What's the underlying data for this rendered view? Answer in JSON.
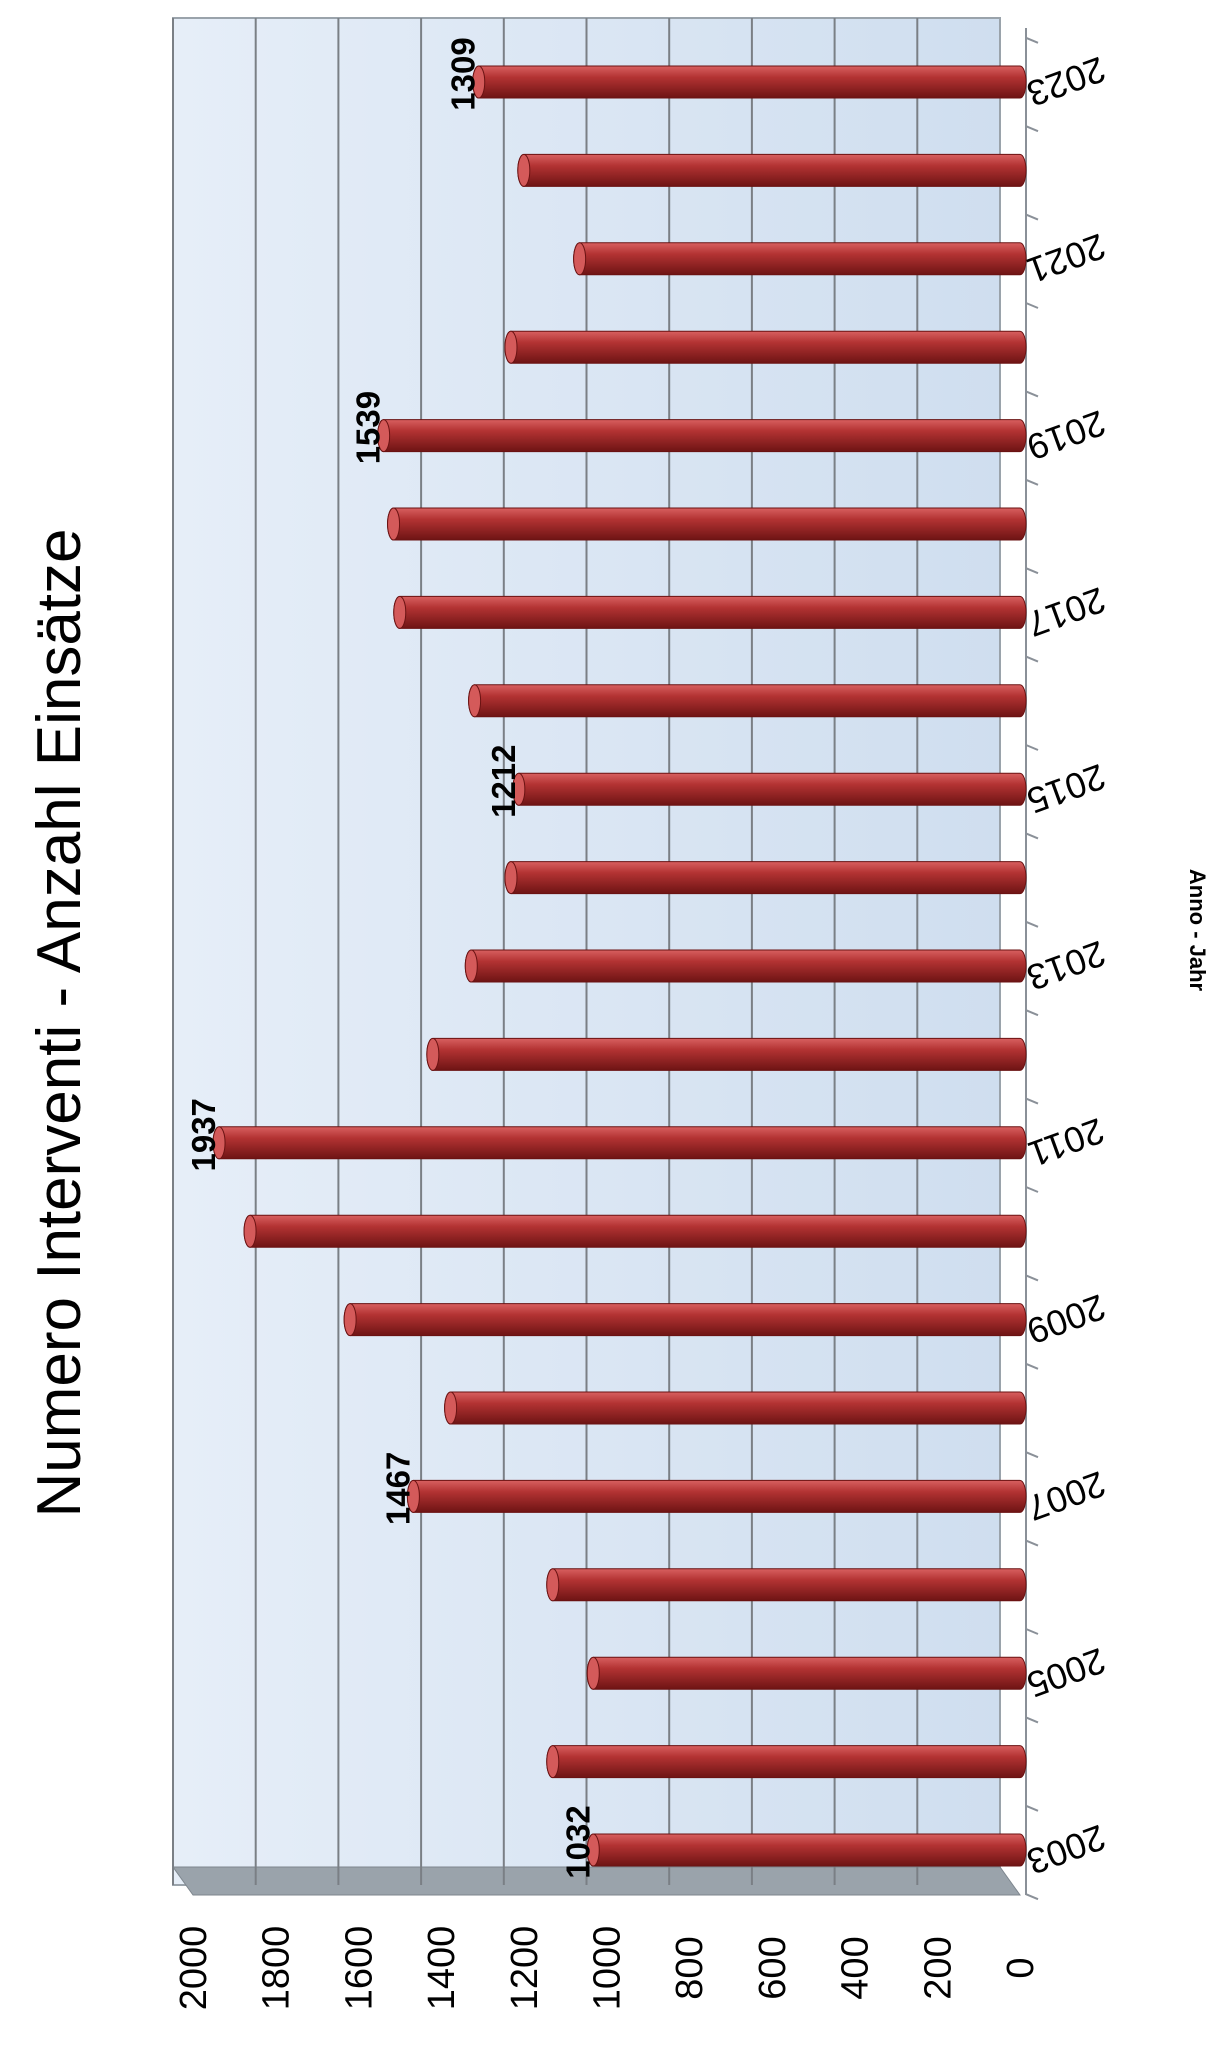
{
  "chart_data": {
    "type": "bar",
    "title": "Numero Interventi - Anzahl Einsätze",
    "xlabel": "Anno - Jahr",
    "ylabel": "",
    "ylim": [
      0,
      2000
    ],
    "yticks": [
      "0",
      "200",
      "400",
      "600",
      "800",
      "1000",
      "1200",
      "1400",
      "1600",
      "1800",
      "2000"
    ],
    "categories": [
      "2003",
      "2004",
      "2005",
      "2006",
      "2007",
      "2008",
      "2009",
      "2010",
      "2011",
      "2012",
      "2013",
      "2014",
      "2015",
      "2016",
      "2017",
      "2018",
      "2019",
      "2020",
      "2021",
      "2022",
      "2023"
    ],
    "xtick_labels": [
      "2003",
      "",
      "2005",
      "",
      "2007",
      "",
      "2009",
      "",
      "2011",
      "",
      "2013",
      "",
      "2015",
      "",
      "2017",
      "",
      "2019",
      "",
      "2021",
      "",
      "2023"
    ],
    "values": [
      1032,
      1130,
      1032,
      1130,
      1467,
      1377,
      1620,
      1862,
      1937,
      1420,
      1327,
      1231,
      1212,
      1319,
      1500,
      1515,
      1539,
      1231,
      1065,
      1200,
      1309
    ],
    "data_labels": [
      {
        "index": 0,
        "text": "1032"
      },
      {
        "index": 4,
        "text": "1467"
      },
      {
        "index": 8,
        "text": "1937"
      },
      {
        "index": 12,
        "text": "1212"
      },
      {
        "index": 16,
        "text": "1539"
      },
      {
        "index": 20,
        "text": "1309"
      }
    ],
    "grid": true,
    "orientation": "rotated-90-clockwise",
    "colors": {
      "bar": "#a32a2a",
      "bar_dark": "#6a1212",
      "bar_light": "#d45a5a",
      "plot_bg": "#dce8f5",
      "floor": "#9aa3ab",
      "grid": "#7a7f85"
    }
  }
}
